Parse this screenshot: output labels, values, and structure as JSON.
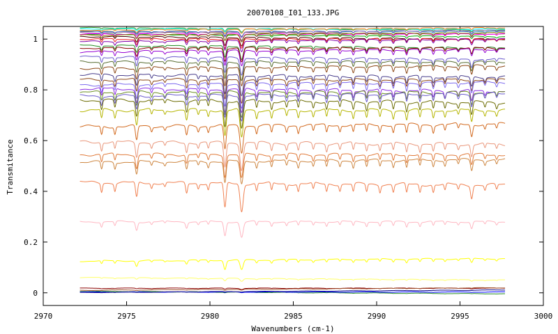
{
  "chart_data": {
    "type": "line",
    "title": "20070108_I01_133.JPG",
    "xlabel": "Wavenumbers (cm-1)",
    "ylabel": "Transmitance",
    "xlim": [
      2970,
      3000
    ],
    "ylim": [
      -0.05,
      1.05
    ],
    "x_ticks": [
      2970,
      2975,
      2980,
      2985,
      2990,
      2995,
      3000
    ],
    "y_ticks": [
      0,
      0.2,
      0.4,
      0.6,
      0.8,
      1
    ],
    "grid": false,
    "legend": "none",
    "x_range_data": [
      2972.2,
      2997.7
    ],
    "absorption_lines": [
      {
        "x": 2973.5,
        "depth": 0.35,
        "width": 0.07
      },
      {
        "x": 2974.3,
        "depth": 0.3,
        "width": 0.07
      },
      {
        "x": 2975.6,
        "depth": 0.6,
        "width": 0.09
      },
      {
        "x": 2976.5,
        "depth": 0.2,
        "width": 0.07
      },
      {
        "x": 2977.3,
        "depth": 0.15,
        "width": 0.07
      },
      {
        "x": 2978.6,
        "depth": 0.4,
        "width": 0.08
      },
      {
        "x": 2979.3,
        "depth": 0.2,
        "width": 0.07
      },
      {
        "x": 2979.9,
        "depth": 0.25,
        "width": 0.07
      },
      {
        "x": 2980.9,
        "depth": 1.0,
        "width": 0.1
      },
      {
        "x": 2981.9,
        "depth": 1.1,
        "width": 0.13
      },
      {
        "x": 2982.8,
        "depth": 0.3,
        "width": 0.07
      },
      {
        "x": 2983.7,
        "depth": 0.3,
        "width": 0.07
      },
      {
        "x": 2984.6,
        "depth": 0.25,
        "width": 0.07
      },
      {
        "x": 2985.3,
        "depth": 0.3,
        "width": 0.07
      },
      {
        "x": 2986.2,
        "depth": 0.25,
        "width": 0.07
      },
      {
        "x": 2987.0,
        "depth": 0.3,
        "width": 0.07
      },
      {
        "x": 2987.8,
        "depth": 0.25,
        "width": 0.07
      },
      {
        "x": 2988.6,
        "depth": 0.3,
        "width": 0.07
      },
      {
        "x": 2989.4,
        "depth": 0.3,
        "width": 0.07
      },
      {
        "x": 2990.2,
        "depth": 0.28,
        "width": 0.07
      },
      {
        "x": 2991.0,
        "depth": 0.3,
        "width": 0.07
      },
      {
        "x": 2991.8,
        "depth": 0.35,
        "width": 0.07
      },
      {
        "x": 2992.6,
        "depth": 0.3,
        "width": 0.07
      },
      {
        "x": 2993.4,
        "depth": 0.3,
        "width": 0.07
      },
      {
        "x": 2994.1,
        "depth": 0.25,
        "width": 0.07
      },
      {
        "x": 2994.9,
        "depth": 0.2,
        "width": 0.07
      },
      {
        "x": 2995.7,
        "depth": 0.5,
        "width": 0.09
      },
      {
        "x": 2996.5,
        "depth": 0.2,
        "width": 0.07
      },
      {
        "x": 2997.2,
        "depth": 0.2,
        "width": 0.07
      }
    ],
    "series": [
      {
        "baseline": 1.045,
        "scale": 0.012,
        "color": "#2ca02c"
      },
      {
        "baseline": 1.04,
        "scale": 0.012,
        "color": "#00ffff"
      },
      {
        "baseline": 1.035,
        "scale": 0.015,
        "color": "#ff7f0e"
      },
      {
        "baseline": 1.03,
        "scale": 0.015,
        "color": "#8c564b"
      },
      {
        "baseline": 1.03,
        "scale": 0.018,
        "color": "#1f77b4"
      },
      {
        "baseline": 1.025,
        "scale": 0.02,
        "color": "#9467bd"
      },
      {
        "baseline": 1.02,
        "scale": 0.02,
        "color": "#00aa00"
      },
      {
        "baseline": 1.02,
        "scale": 0.025,
        "color": "#ff00ff"
      },
      {
        "baseline": 1.015,
        "scale": 0.025,
        "color": "#808000"
      },
      {
        "baseline": 1.01,
        "scale": 0.03,
        "color": "#4b0000"
      },
      {
        "baseline": 1.0,
        "scale": 0.035,
        "color": "#ee1e1e"
      },
      {
        "baseline": 0.99,
        "scale": 0.04,
        "color": "#8000aa"
      },
      {
        "baseline": 0.975,
        "scale": 0.045,
        "color": "#228b22"
      },
      {
        "baseline": 0.965,
        "scale": 0.05,
        "color": "#8b0000"
      },
      {
        "baseline": 0.95,
        "scale": 0.055,
        "color": "#9400d3"
      },
      {
        "baseline": 0.93,
        "scale": 0.06,
        "color": "#6a5acd"
      },
      {
        "baseline": 0.91,
        "scale": 0.065,
        "color": "#556b2f"
      },
      {
        "baseline": 0.885,
        "scale": 0.07,
        "color": "#8b4513"
      },
      {
        "baseline": 0.86,
        "scale": 0.075,
        "color": "#483d8b"
      },
      {
        "baseline": 0.84,
        "scale": 0.08,
        "color": "#8b4513"
      },
      {
        "baseline": 0.82,
        "scale": 0.085,
        "color": "#7b68ee"
      },
      {
        "baseline": 0.805,
        "scale": 0.085,
        "color": "#8a2be2"
      },
      {
        "baseline": 0.79,
        "scale": 0.09,
        "color": "#6b8e23"
      },
      {
        "baseline": 0.775,
        "scale": 0.09,
        "color": "#6a5acd"
      },
      {
        "baseline": 0.76,
        "scale": 0.1,
        "color": "#6b6b00"
      },
      {
        "baseline": 0.72,
        "scale": 0.1,
        "color": "#b5b500"
      },
      {
        "baseline": 0.655,
        "scale": 0.095,
        "color": "#d2691e"
      },
      {
        "baseline": 0.595,
        "scale": 0.095,
        "color": "#e9967a"
      },
      {
        "baseline": 0.545,
        "scale": 0.085,
        "color": "#e07a3a"
      },
      {
        "baseline": 0.515,
        "scale": 0.085,
        "color": "#cd853f"
      },
      {
        "baseline": 0.435,
        "scale": 0.1,
        "color": "#f08050"
      },
      {
        "baseline": 0.28,
        "scale": 0.055,
        "color": "#ffb6c1"
      },
      {
        "baseline": 0.125,
        "scale": 0.035,
        "color": "#ffff00"
      },
      {
        "baseline": 0.06,
        "scale": 0.01,
        "color": "#ffff66"
      },
      {
        "baseline": 0.018,
        "scale": 0.004,
        "color": "#8b0000"
      },
      {
        "baseline": 0.01,
        "scale": 0.003,
        "color": "#a0522d"
      },
      {
        "baseline": 0.006,
        "scale": 0.002,
        "color": "#228b22"
      },
      {
        "baseline": 0.003,
        "scale": 0.002,
        "color": "#0000ff"
      },
      {
        "baseline": 0.001,
        "scale": 0.001,
        "color": "#000080"
      }
    ]
  }
}
